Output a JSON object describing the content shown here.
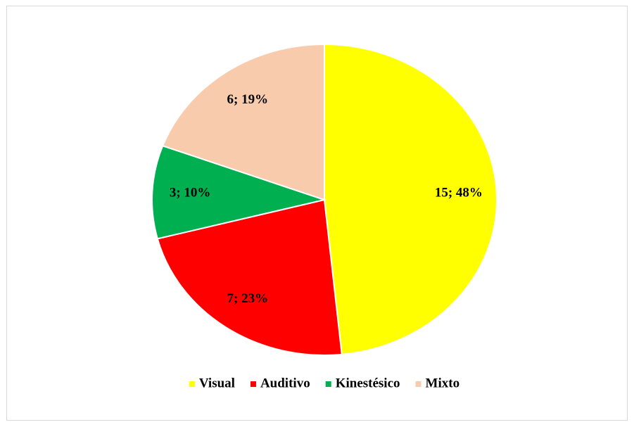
{
  "chart_data": {
    "type": "pie",
    "categories": [
      "Visual",
      "Auditivo",
      "Kinestésico",
      "Mixto"
    ],
    "values": [
      15,
      7,
      3,
      6
    ],
    "value_labels": [
      "15; 48%",
      "7; 23%",
      "3; 10%",
      "6; 19%"
    ],
    "colors": [
      "#ffff00",
      "#ff0000",
      "#00b050",
      "#f8cbad"
    ],
    "legend": "bottom"
  }
}
